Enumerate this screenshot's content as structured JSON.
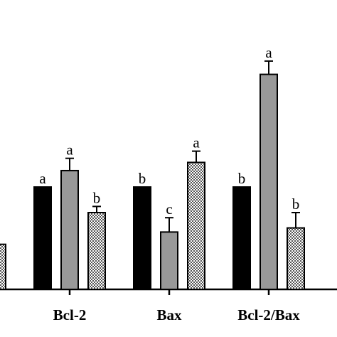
{
  "chart_data": {
    "type": "bar",
    "categories": [
      null,
      "Bcl-2",
      "Bax",
      "Bcl-2/Bax"
    ],
    "series": [
      {
        "color": "#000000",
        "values": [
          null,
          1.0,
          1.0,
          1.0
        ],
        "errors": [
          null,
          null,
          null,
          null
        ],
        "letters": [
          null,
          "a",
          "b",
          "b"
        ]
      },
      {
        "color": "#999999",
        "values": [
          null,
          1.16,
          0.56,
          2.1
        ],
        "errors": [
          null,
          0.12,
          0.14,
          0.13
        ],
        "letters": [
          null,
          "a",
          "c",
          "a"
        ]
      },
      {
        "color": "checkered",
        "values": [
          0.44,
          0.75,
          1.24,
          0.6
        ],
        "errors": [
          null,
          0.06,
          0.11,
          0.15
        ],
        "letters": [
          null,
          "b",
          "a",
          "b"
        ]
      }
    ],
    "ylim": [
      0,
      2.8
    ]
  }
}
